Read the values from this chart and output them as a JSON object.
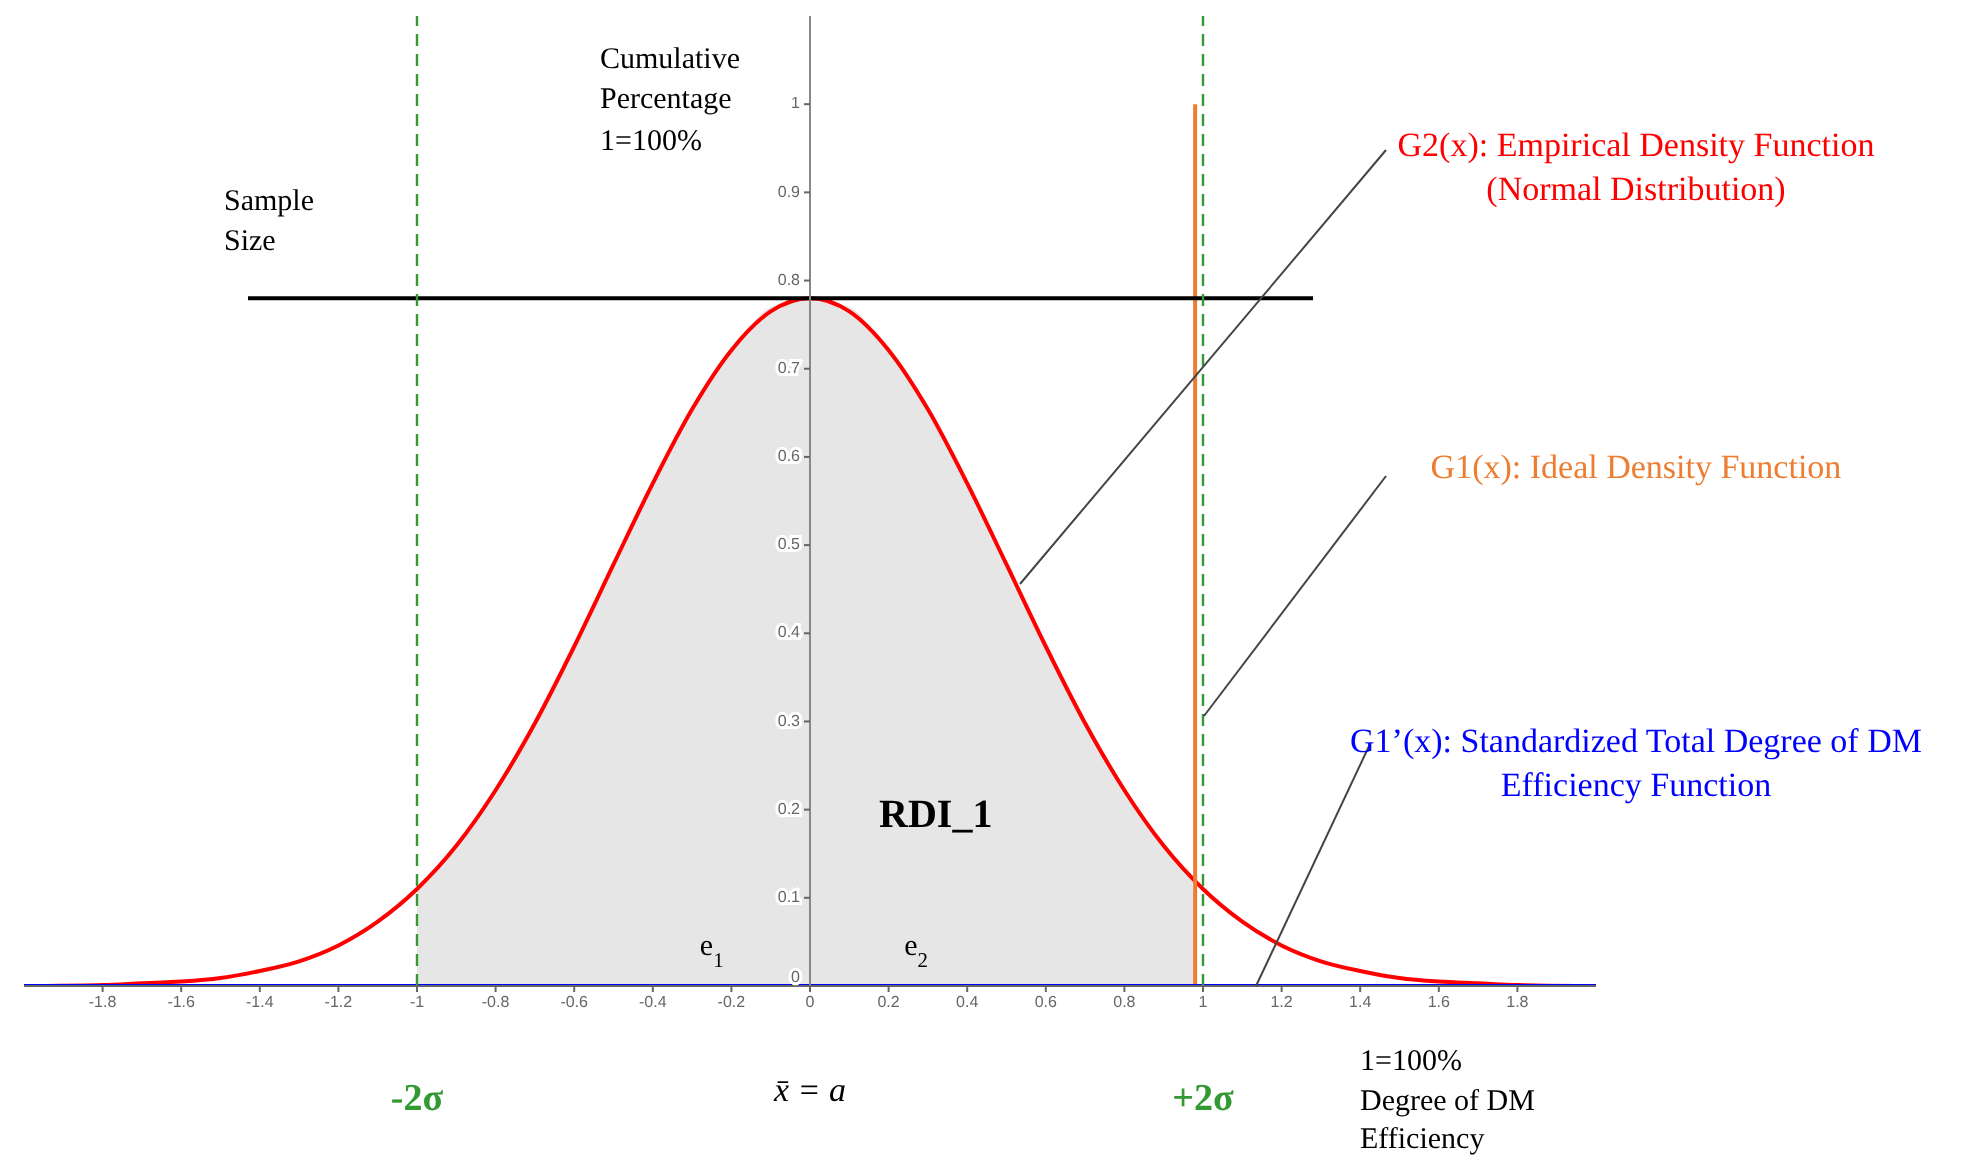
{
  "chart_data": {
    "type": "line",
    "ylabel": "Cumulative Percentage 1=100%",
    "xlabel": "1=100% Degree of DM Efficiency",
    "xlim": [
      -2,
      2
    ],
    "ylim": [
      0,
      1.1
    ],
    "xticks": [
      -1.8,
      -1.6,
      -1.4,
      -1.2,
      -1,
      -0.8,
      -0.6,
      -0.4,
      -0.2,
      0,
      0.2,
      0.4,
      0.6,
      0.8,
      1,
      1.2,
      1.4,
      1.6,
      1.8
    ],
    "yticks": [
      0,
      0.1,
      0.2,
      0.3,
      0.4,
      0.5,
      0.6,
      0.7,
      0.8,
      0.9,
      1
    ],
    "series": [
      {
        "type": "area",
        "color": "#e6e6e6",
        "x": [
          -1,
          -0.9,
          -0.8,
          -0.7,
          -0.6,
          -0.5,
          -0.4,
          -0.3,
          -0.2,
          -0.1,
          0,
          0.1,
          0.2,
          0.3,
          0.4,
          0.5,
          0.6,
          0.7,
          0.8,
          0.9,
          0.98
        ],
        "values": [
          0.11,
          0.16,
          0.22,
          0.3,
          0.39,
          0.48,
          0.57,
          0.65,
          0.72,
          0.77,
          0.78,
          0.77,
          0.72,
          0.65,
          0.57,
          0.48,
          0.39,
          0.3,
          0.22,
          0.16,
          0.12
        ]
      },
      {
        "name": "G2(x): Empirical Density Function (Normal Distribution)",
        "color": "#ff0000",
        "x": [
          -1.95,
          -1.8,
          -1.7,
          -1.6,
          -1.5,
          -1.4,
          -1.3,
          -1.2,
          -1.1,
          -1,
          -0.9,
          -0.8,
          -0.7,
          -0.6,
          -0.5,
          -0.4,
          -0.3,
          -0.2,
          -0.1,
          0,
          0.1,
          0.2,
          0.3,
          0.4,
          0.5,
          0.6,
          0.7,
          0.8,
          0.9,
          1,
          1.1,
          1.2,
          1.3,
          1.4,
          1.5,
          1.6,
          1.7,
          1.8,
          1.95
        ],
        "values": [
          0,
          0.001,
          0.003,
          0.005,
          0.009,
          0.017,
          0.028,
          0.046,
          0.073,
          0.11,
          0.159,
          0.222,
          0.298,
          0.385,
          0.478,
          0.57,
          0.654,
          0.721,
          0.765,
          0.78,
          0.765,
          0.721,
          0.654,
          0.57,
          0.478,
          0.385,
          0.298,
          0.222,
          0.159,
          0.11,
          0.073,
          0.046,
          0.028,
          0.017,
          0.009,
          0.005,
          0.003,
          0.001,
          0
        ]
      },
      {
        "name": "G1(x): Ideal Density Function",
        "color": "#ed7d31",
        "x": [
          0.98,
          0.98
        ],
        "values": [
          0,
          1
        ]
      },
      {
        "name": "G1’(x): Standardized Total Degree of DM Efficiency Function",
        "color": "#0000ff",
        "x": [
          -2,
          2
        ],
        "values": [
          0,
          0
        ]
      },
      {
        "name": "Sample Size",
        "color": "#000000",
        "x": [
          -1.43,
          1.28
        ],
        "values": [
          0.78,
          0.78
        ]
      }
    ],
    "ref_lines": [
      {
        "axis": "x",
        "value": -1,
        "label": "-2σ",
        "color": "#339933",
        "line_style": "dashed"
      },
      {
        "axis": "x",
        "value": 1,
        "label": "+2σ",
        "color": "#339933",
        "line_style": "dashed"
      }
    ],
    "annotations": [
      "RDI_1",
      "e$_{1}$",
      "e$_{2}$",
      "x̄ = a"
    ]
  }
}
